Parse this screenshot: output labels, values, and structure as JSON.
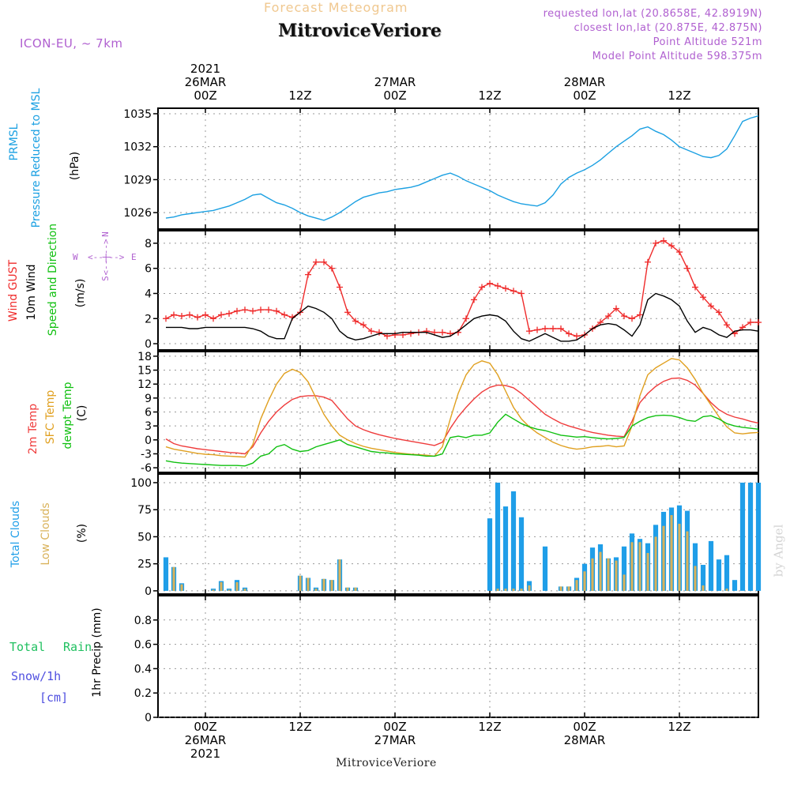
{
  "header": {
    "chart_type": "Forecast Meteogram",
    "station": "MitroviceVeriore",
    "model": "ICON-EU, ~ 7km",
    "requested": "requested lon,lat (20.8658E, 42.8919N)",
    "closest": "closest lon,lat (20.875E, 42.875N)",
    "point_alt": "Point Altitude 521m",
    "model_alt": "Model Point Altitude 598.375m"
  },
  "colors": {
    "pressure": "#1ba0e2",
    "gust": "#ef2b2b",
    "wind": "#000000",
    "temp2m": "#ef3b3b",
    "sfc": "#e0a020",
    "dewpt": "#10c010",
    "total_clouds": "#1f9ee8",
    "low_clouds": "#d9b25a",
    "header_orange": "#f0c890",
    "header_purple": "#b060d0",
    "rain": "#20c060",
    "snow": "#5050e0"
  },
  "time_axis": {
    "top": [
      {
        "h": 0,
        "lines": [
          "2021",
          "26MAR",
          "00Z"
        ]
      },
      {
        "h": 12,
        "lines": [
          "12Z"
        ]
      },
      {
        "h": 24,
        "lines": [
          "27MAR",
          "00Z"
        ]
      },
      {
        "h": 36,
        "lines": [
          "12Z"
        ]
      },
      {
        "h": 48,
        "lines": [
          "28MAR",
          "00Z"
        ]
      },
      {
        "h": 60,
        "lines": [
          "12Z"
        ]
      }
    ],
    "bottom": [
      {
        "h": 0,
        "lines": [
          "00Z",
          "26MAR",
          "2021"
        ]
      },
      {
        "h": 12,
        "lines": [
          "12Z"
        ]
      },
      {
        "h": 24,
        "lines": [
          "00Z",
          "27MAR"
        ]
      },
      {
        "h": 36,
        "lines": [
          "12Z"
        ]
      },
      {
        "h": 48,
        "lines": [
          "00Z",
          "28MAR"
        ]
      },
      {
        "h": 60,
        "lines": [
          "12Z"
        ]
      }
    ]
  },
  "labels": {
    "pressure": [
      "PRMSL",
      "Pressure Reduced to MSL",
      "(hPa)"
    ],
    "wind": [
      "Wind GUST",
      "10m Wind",
      "Speed and Direction",
      "(m/s)"
    ],
    "compass": [
      "N",
      "W",
      "E",
      "S",
      "<--|-->"
    ],
    "temp": [
      "2m Temp",
      "SFC Temp",
      "dewpt Temp",
      "(C)"
    ],
    "clouds": [
      "Total Clouds",
      "Low Clouds",
      "(%)"
    ],
    "precip": [
      "Total",
      "Rain",
      "Snow/1h",
      "[cm]",
      "1hr Precip (mm)"
    ],
    "footer": "MitroviceVeriore",
    "credit": "by Angel"
  },
  "chart_data": [
    {
      "type": "line",
      "panel": "pressure",
      "ylabel": "(hPa)",
      "ylim": [
        1024.5,
        1035.5
      ],
      "yticks": [
        1026,
        1029,
        1032,
        1035
      ],
      "grid": true,
      "x_hours": [
        -5,
        -4,
        -3,
        -2,
        -1,
        0,
        1,
        2,
        3,
        4,
        5,
        6,
        7,
        8,
        9,
        10,
        11,
        12,
        13,
        14,
        15,
        16,
        17,
        18,
        19,
        20,
        21,
        22,
        23,
        24,
        25,
        26,
        27,
        28,
        29,
        30,
        31,
        32,
        33,
        34,
        35,
        36,
        37,
        38,
        39,
        40,
        41,
        42,
        43,
        44,
        45,
        46,
        47,
        48,
        49,
        50,
        51,
        52,
        53,
        54,
        55,
        56,
        57,
        58,
        59,
        60,
        61,
        62,
        63,
        64,
        65,
        66,
        67,
        68,
        69,
        70
      ],
      "series": [
        {
          "name": "PRMSL",
          "values": [
            1025.5,
            1025.6,
            1025.8,
            1025.9,
            1026.0,
            1026.1,
            1026.2,
            1026.4,
            1026.6,
            1026.9,
            1027.2,
            1027.6,
            1027.7,
            1027.3,
            1026.9,
            1026.7,
            1026.4,
            1026.0,
            1025.7,
            1025.5,
            1025.3,
            1025.6,
            1026.0,
            1026.5,
            1027.0,
            1027.4,
            1027.6,
            1027.8,
            1027.9,
            1028.1,
            1028.2,
            1028.3,
            1028.5,
            1028.8,
            1029.1,
            1029.4,
            1029.6,
            1029.3,
            1028.9,
            1028.6,
            1028.3,
            1028.0,
            1027.6,
            1027.3,
            1027.0,
            1026.8,
            1026.7,
            1026.6,
            1026.9,
            1027.6,
            1028.6,
            1029.2,
            1029.6,
            1029.9,
            1030.3,
            1030.8,
            1031.4,
            1032.0,
            1032.5,
            1033.0,
            1033.6,
            1033.8,
            1033.4,
            1033.1,
            1032.6,
            1032.0,
            1031.7,
            1031.4,
            1031.1,
            1031.0,
            1031.2,
            1031.8,
            1033.0,
            1034.3,
            1034.6,
            1034.8
          ]
        }
      ]
    },
    {
      "type": "line",
      "panel": "wind",
      "ylabel": "(m/s)",
      "ylim": [
        -0.5,
        9
      ],
      "yticks": [
        0,
        2,
        4,
        6,
        8
      ],
      "grid": true,
      "x_hours": [
        -5,
        -4,
        -3,
        -2,
        -1,
        0,
        1,
        2,
        3,
        4,
        5,
        6,
        7,
        8,
        9,
        10,
        11,
        12,
        13,
        14,
        15,
        16,
        17,
        18,
        19,
        20,
        21,
        22,
        23,
        24,
        25,
        26,
        27,
        28,
        29,
        30,
        31,
        32,
        33,
        34,
        35,
        36,
        37,
        38,
        39,
        40,
        41,
        42,
        43,
        44,
        45,
        46,
        47,
        48,
        49,
        50,
        51,
        52,
        53,
        54,
        55,
        56,
        57,
        58,
        59,
        60,
        61,
        62,
        63,
        64,
        65,
        66,
        67,
        68,
        69,
        70
      ],
      "series": [
        {
          "name": "Wind GUST",
          "values": [
            2.0,
            2.3,
            2.2,
            2.3,
            2.1,
            2.3,
            2.0,
            2.3,
            2.4,
            2.6,
            2.7,
            2.6,
            2.7,
            2.7,
            2.6,
            2.3,
            2.1,
            2.5,
            5.5,
            6.5,
            6.5,
            6.0,
            4.5,
            2.5,
            1.8,
            1.5,
            1.0,
            0.9,
            0.6,
            0.7,
            0.7,
            0.8,
            0.9,
            1.0,
            0.9,
            0.9,
            0.8,
            0.9,
            2.0,
            3.5,
            4.5,
            4.8,
            4.6,
            4.4,
            4.2,
            4.0,
            1.0,
            1.1,
            1.2,
            1.2,
            1.2,
            0.8,
            0.6,
            0.7,
            1.2,
            1.7,
            2.2,
            2.8,
            2.2,
            2.0,
            2.3,
            6.5,
            8.0,
            8.2,
            7.8,
            7.3,
            6.0,
            4.5,
            3.7,
            3.0,
            2.5,
            1.5,
            0.8,
            1.3,
            1.7,
            1.7
          ]
        },
        {
          "name": "10m Wind",
          "values": [
            1.3,
            1.3,
            1.3,
            1.2,
            1.2,
            1.3,
            1.3,
            1.3,
            1.3,
            1.3,
            1.3,
            1.2,
            1.0,
            0.6,
            0.4,
            0.4,
            2.0,
            2.5,
            3.0,
            2.8,
            2.5,
            2.0,
            1.0,
            0.5,
            0.3,
            0.4,
            0.6,
            0.8,
            0.8,
            0.8,
            0.9,
            0.9,
            0.9,
            0.9,
            0.7,
            0.5,
            0.6,
            1.0,
            1.5,
            2.0,
            2.2,
            2.3,
            2.2,
            1.8,
            1.0,
            0.4,
            0.2,
            0.5,
            0.8,
            0.5,
            0.2,
            0.2,
            0.3,
            0.7,
            1.2,
            1.5,
            1.6,
            1.5,
            1.1,
            0.6,
            1.5,
            3.5,
            4.0,
            3.8,
            3.5,
            3.0,
            1.8,
            0.9,
            1.3,
            1.1,
            0.7,
            0.5,
            1.0,
            1.1,
            1.1,
            1.0
          ]
        }
      ]
    },
    {
      "type": "line",
      "panel": "temperature",
      "ylabel": "(C)",
      "ylim": [
        -7,
        19
      ],
      "yticks": [
        -6,
        -3,
        0,
        3,
        6,
        9,
        12,
        15,
        18
      ],
      "grid": true,
      "x_hours": [
        -5,
        -4,
        -3,
        -2,
        -1,
        0,
        1,
        2,
        3,
        4,
        5,
        6,
        7,
        8,
        9,
        10,
        11,
        12,
        13,
        14,
        15,
        16,
        17,
        18,
        19,
        20,
        21,
        22,
        23,
        24,
        25,
        26,
        27,
        28,
        29,
        30,
        31,
        32,
        33,
        34,
        35,
        36,
        37,
        38,
        39,
        40,
        41,
        42,
        43,
        44,
        45,
        46,
        47,
        48,
        49,
        50,
        51,
        52,
        53,
        54,
        55,
        56,
        57,
        58,
        59,
        60,
        61,
        62,
        63,
        64,
        65,
        66,
        67,
        68,
        69,
        70
      ],
      "series": [
        {
          "name": "2m Temp",
          "values": [
            0.2,
            -0.8,
            -1.3,
            -1.6,
            -1.9,
            -2.1,
            -2.3,
            -2.5,
            -2.7,
            -2.8,
            -3.0,
            -1.5,
            1.5,
            4.0,
            6.0,
            7.5,
            8.7,
            9.3,
            9.5,
            9.5,
            9.2,
            8.5,
            6.5,
            4.5,
            3.0,
            2.2,
            1.6,
            1.1,
            0.7,
            0.3,
            0.0,
            -0.3,
            -0.6,
            -0.9,
            -1.2,
            -0.5,
            2.5,
            5.0,
            7.0,
            8.8,
            10.3,
            11.3,
            11.8,
            11.7,
            11.2,
            10.0,
            8.5,
            7.0,
            5.5,
            4.5,
            3.6,
            3.0,
            2.5,
            2.0,
            1.6,
            1.3,
            1.0,
            0.8,
            0.7,
            4.0,
            8.0,
            10.0,
            11.5,
            12.6,
            13.2,
            13.3,
            12.8,
            11.8,
            10.0,
            8.0,
            6.5,
            5.5,
            4.9,
            4.5,
            4.0,
            3.6
          ]
        },
        {
          "name": "SFC Temp",
          "values": [
            -1.5,
            -2.0,
            -2.3,
            -2.6,
            -2.9,
            -3.1,
            -3.2,
            -3.4,
            -3.5,
            -3.6,
            -3.7,
            -1.0,
            4.5,
            8.5,
            12.0,
            14.3,
            15.2,
            14.5,
            12.5,
            9.0,
            5.5,
            3.0,
            1.0,
            0.0,
            -0.8,
            -1.4,
            -1.8,
            -2.1,
            -2.4,
            -2.7,
            -2.9,
            -3.1,
            -3.2,
            -3.3,
            -3.5,
            -1.5,
            4.5,
            10.0,
            14.0,
            16.2,
            17.0,
            16.5,
            14.0,
            10.5,
            7.0,
            4.5,
            2.8,
            1.5,
            0.5,
            -0.5,
            -1.2,
            -1.7,
            -2.0,
            -1.8,
            -1.5,
            -1.4,
            -1.2,
            -1.5,
            -1.3,
            3.0,
            9.5,
            14.0,
            15.5,
            16.5,
            17.5,
            17.2,
            15.5,
            13.0,
            10.0,
            7.5,
            5.0,
            2.8,
            1.5,
            1.3,
            1.5,
            1.6
          ]
        },
        {
          "name": "dewpt Temp",
          "values": [
            -4.5,
            -4.8,
            -5.0,
            -5.1,
            -5.2,
            -5.3,
            -5.4,
            -5.5,
            -5.5,
            -5.5,
            -5.6,
            -5.0,
            -3.5,
            -3.0,
            -1.5,
            -1.0,
            -2.0,
            -2.5,
            -2.3,
            -1.5,
            -1.0,
            -0.5,
            0.0,
            -1.0,
            -1.5,
            -2.0,
            -2.5,
            -2.7,
            -2.8,
            -3.0,
            -3.1,
            -3.2,
            -3.3,
            -3.5,
            -3.5,
            -3.0,
            0.5,
            0.8,
            0.5,
            1.0,
            1.0,
            1.5,
            3.8,
            5.5,
            4.5,
            3.5,
            2.8,
            2.3,
            2.0,
            1.5,
            1.0,
            0.8,
            0.6,
            0.7,
            0.5,
            0.3,
            0.2,
            0.3,
            0.5,
            3.0,
            4.0,
            4.8,
            5.2,
            5.3,
            5.2,
            4.8,
            4.2,
            4.0,
            5.0,
            5.2,
            4.5,
            3.5,
            3.0,
            2.7,
            2.5,
            2.3
          ]
        }
      ]
    },
    {
      "type": "bar",
      "panel": "clouds",
      "ylabel": "(%)",
      "ylim": [
        -3,
        108
      ],
      "yticks": [
        0,
        25,
        50,
        75,
        100
      ],
      "grid": true,
      "x_hours": [
        -5,
        -4,
        -3,
        -2,
        -1,
        0,
        1,
        2,
        3,
        4,
        5,
        6,
        7,
        8,
        9,
        10,
        11,
        12,
        13,
        14,
        15,
        16,
        17,
        18,
        19,
        20,
        21,
        22,
        23,
        24,
        25,
        26,
        27,
        28,
        29,
        30,
        31,
        32,
        33,
        34,
        35,
        36,
        37,
        38,
        39,
        40,
        41,
        42,
        43,
        44,
        45,
        46,
        47,
        48,
        49,
        50,
        51,
        52,
        53,
        54,
        55,
        56,
        57,
        58,
        59,
        60,
        61,
        62,
        63,
        64,
        65,
        66,
        67,
        68,
        69,
        70
      ],
      "series": [
        {
          "name": "Total Clouds",
          "values": [
            31,
            22,
            7,
            0,
            0,
            0,
            2,
            9,
            2,
            10,
            3,
            0,
            0,
            0,
            0,
            0,
            0,
            14,
            12,
            3,
            11,
            10,
            29,
            3,
            3,
            0,
            0,
            0,
            0,
            0,
            0,
            0,
            0,
            0,
            0,
            0,
            0,
            0,
            0,
            0,
            0,
            67,
            100,
            78,
            92,
            68,
            9,
            0,
            41,
            0,
            4,
            4,
            12,
            25,
            40,
            43,
            30,
            31,
            41,
            53,
            48,
            44,
            61,
            73,
            77,
            79,
            74,
            44,
            24,
            46,
            29,
            33,
            10,
            100,
            100,
            100
          ]
        },
        {
          "name": "Low Clouds",
          "values": [
            0,
            22,
            6,
            0,
            0,
            0,
            1,
            8,
            1,
            8,
            2,
            0,
            0,
            0,
            0,
            0,
            0,
            14,
            12,
            2,
            11,
            10,
            29,
            3,
            3,
            0,
            0,
            0,
            0,
            0,
            0,
            0,
            0,
            0,
            0,
            0,
            0,
            0,
            0,
            0,
            0,
            0,
            2,
            2,
            2,
            2,
            5,
            0,
            0,
            0,
            4,
            4,
            10,
            18,
            30,
            36,
            30,
            28,
            15,
            45,
            45,
            35,
            50,
            60,
            70,
            62,
            55,
            23,
            5,
            0,
            0,
            2,
            0,
            0,
            0,
            0
          ]
        }
      ]
    },
    {
      "type": "bar",
      "panel": "precip",
      "ylabel": "1hr Precip (mm)",
      "ylim": [
        0,
        1
      ],
      "yticks": [
        0,
        0.2,
        0.4,
        0.6,
        0.8
      ],
      "grid": true,
      "series": [
        {
          "name": "Total",
          "values": []
        },
        {
          "name": "Rain",
          "values": []
        },
        {
          "name": "Snow/1h",
          "values": []
        }
      ]
    }
  ]
}
